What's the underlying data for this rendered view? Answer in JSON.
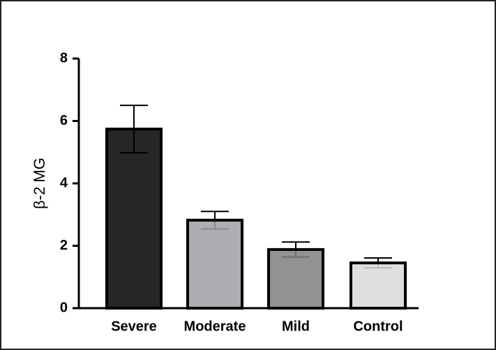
{
  "chart_data": {
    "type": "bar",
    "y_label": "β-2 MG",
    "categories": [
      "Severe",
      "Moderate",
      "Mild",
      "Control"
    ],
    "values": [
      5.74,
      2.82,
      1.88,
      1.45
    ],
    "errors": [
      0.76,
      0.28,
      0.24,
      0.16
    ],
    "colors": [
      "#000000",
      "#a0a0a4",
      "#7f7f7f",
      "#d9d9d9"
    ],
    "ylim": [
      0,
      8
    ],
    "yticks": [
      0,
      2,
      4,
      6,
      8
    ],
    "grid": false
  }
}
